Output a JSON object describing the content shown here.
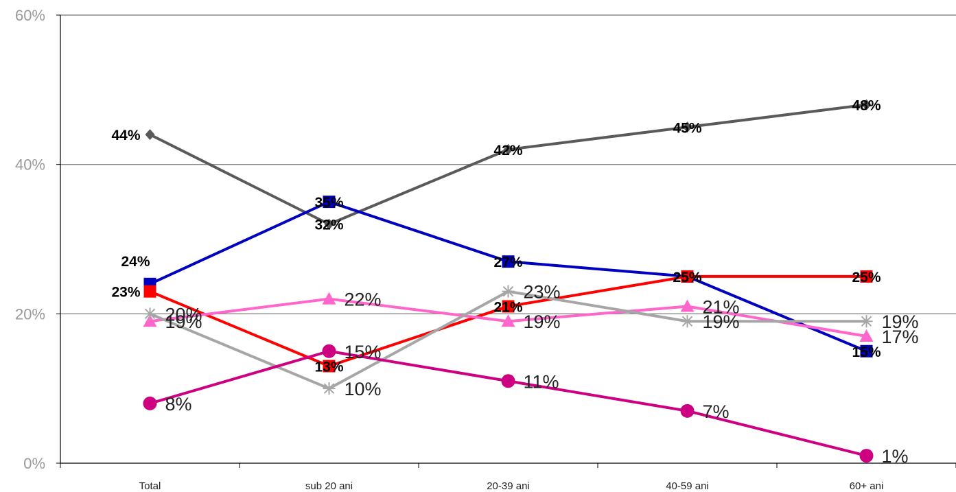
{
  "chart_data": {
    "type": "line",
    "categories": [
      "Total",
      "sub 20 ani",
      "20-39 ani",
      "40-59 ani",
      "60+ ani"
    ],
    "y_ticks": [
      "0%",
      "20%",
      "40%",
      "60%"
    ],
    "ylim": [
      0,
      60
    ],
    "grid": true,
    "series": [
      {
        "values": [
          44,
          32,
          42,
          45,
          48
        ],
        "labels": [
          "44%",
          "32%",
          "42%",
          "45%",
          "48%"
        ],
        "color": "#5a5a5a",
        "marker": "diamond",
        "label_style": "bold"
      },
      {
        "values": [
          24,
          35,
          27,
          25,
          15
        ],
        "labels": [
          "24%",
          "35%",
          "27%",
          "25%",
          "15%"
        ],
        "color": "#0000c0",
        "marker": "square",
        "label_style": "bold"
      },
      {
        "values": [
          23,
          13,
          21,
          25,
          25
        ],
        "labels": [
          "23%",
          "13%",
          "21%",
          "25%",
          "25%"
        ],
        "color": "#ff0000",
        "marker": "square",
        "label_style": "bold"
      },
      {
        "values": [
          19,
          22,
          19,
          21,
          17
        ],
        "labels": [
          "19%",
          "22%",
          "19%",
          "21%",
          "17%"
        ],
        "color": "#ff66cc",
        "marker": "triangle",
        "label_style": "plain"
      },
      {
        "values": [
          20,
          10,
          23,
          19,
          19
        ],
        "labels": [
          "20%",
          "10%",
          "23%",
          "19%",
          "19%"
        ],
        "color": "#a6a6a6",
        "marker": "asterisk",
        "label_style": "plain"
      },
      {
        "values": [
          8,
          15,
          11,
          7,
          1
        ],
        "labels": [
          "8%",
          "15%",
          "11%",
          "7%",
          "1%"
        ],
        "color": "#cc0080",
        "marker": "circle",
        "label_style": "plain"
      }
    ]
  }
}
